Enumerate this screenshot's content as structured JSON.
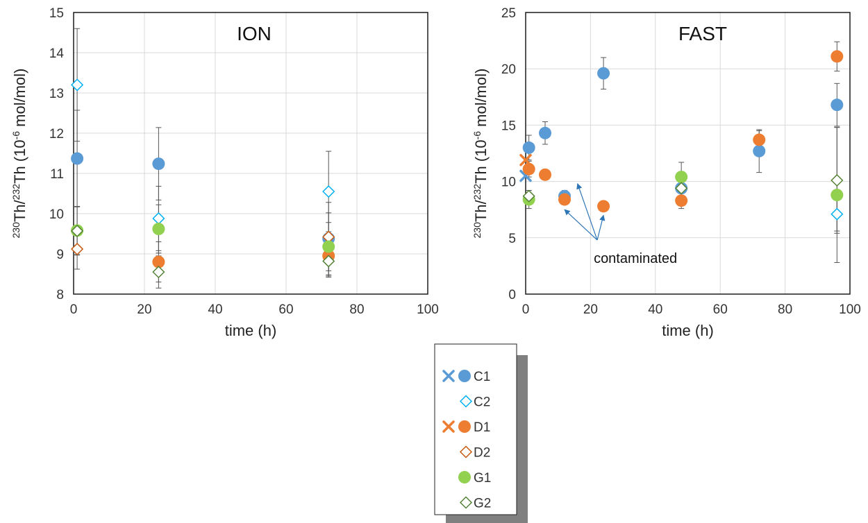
{
  "colors": {
    "C": "#5b9bd5",
    "D": "#ed7d31",
    "D2": "#c55a11",
    "G": "#92d050",
    "G2": "#548235",
    "grid": "#d9d9d9",
    "axis": "#555555",
    "error": "#555555"
  },
  "legend": {
    "placement": "bottom-center",
    "items": [
      {
        "name": "C1",
        "markers": [
          "x",
          "filled-circle"
        ],
        "color": "#5b9bd5"
      },
      {
        "name": "C2",
        "markers": [
          "open-diamond"
        ],
        "color": "#00b0f0"
      },
      {
        "name": "D1",
        "markers": [
          "x",
          "filled-circle"
        ],
        "color": "#ed7d31"
      },
      {
        "name": "D2",
        "markers": [
          "open-diamond"
        ],
        "color": "#c55a11"
      },
      {
        "name": "G1",
        "markers": [
          "filled-circle"
        ],
        "color": "#92d050"
      },
      {
        "name": "G2",
        "markers": [
          "open-diamond"
        ],
        "color": "#548235"
      }
    ]
  },
  "chart_data": [
    {
      "type": "scatter",
      "title": "ION",
      "xlabel": "time (h)",
      "ylabel_parts": {
        "sup1": "230",
        "t1": "Th/",
        "sup2": "232",
        "t2": "Th (10",
        "sup3": "-6",
        "t3": " mol/mol)"
      },
      "xlim": [
        0,
        100
      ],
      "ylim": [
        8,
        15
      ],
      "xticks": [
        "0",
        "20",
        "40",
        "60",
        "80",
        "100"
      ],
      "yticks": [
        "8",
        "9",
        "10",
        "11",
        "12",
        "13",
        "14",
        "15"
      ],
      "grid": true,
      "series": [
        {
          "name": "C1",
          "marker": "filled-circle",
          "color": "#5b9bd5",
          "points": [
            {
              "x": 1,
              "y": 11.37,
              "err": 1.2
            },
            {
              "x": 24,
              "y": 11.24,
              "err": 0.9
            },
            {
              "x": 72,
              "y": 9.38,
              "err": 0.9
            }
          ]
        },
        {
          "name": "C2",
          "marker": "open-diamond",
          "color": "#00b0f0",
          "points": [
            {
              "x": 1,
              "y": 13.2,
              "err": 1.4
            },
            {
              "x": 24,
              "y": 9.88,
              "err": 0.8
            },
            {
              "x": 72,
              "y": 10.55,
              "err": 1.0
            }
          ]
        },
        {
          "name": "D1",
          "marker": "filled-circle",
          "color": "#ed7d31",
          "points": [
            {
              "x": 24,
              "y": 8.8,
              "err": 0.5
            },
            {
              "x": 72,
              "y": 8.95,
              "err": 0.5
            }
          ]
        },
        {
          "name": "D2",
          "marker": "open-diamond",
          "color": "#c55a11",
          "points": [
            {
              "x": 1,
              "y": 9.12,
              "err": 0.5
            },
            {
              "x": 72,
              "y": 9.42,
              "err": 0.6
            }
          ]
        },
        {
          "name": "G1",
          "marker": "filled-circle",
          "color": "#92d050",
          "points": [
            {
              "x": 1,
              "y": 9.58,
              "err": 0.6
            },
            {
              "x": 24,
              "y": 9.62,
              "err": 0.6
            },
            {
              "x": 72,
              "y": 9.18,
              "err": 0.6
            }
          ]
        },
        {
          "name": "G2",
          "marker": "open-diamond",
          "color": "#548235",
          "points": [
            {
              "x": 1,
              "y": 9.57,
              "err": 0.6
            },
            {
              "x": 24,
              "y": 8.55,
              "err": 0.4
            },
            {
              "x": 72,
              "y": 8.82,
              "err": 0.4
            }
          ]
        }
      ]
    },
    {
      "type": "scatter",
      "title": "FAST",
      "xlabel": "time (h)",
      "ylabel_parts": {
        "sup1": "230",
        "t1": "Th/",
        "sup2": "232",
        "t2": "Th (10",
        "sup3": "-6",
        "t3": " mol/mol)"
      },
      "xlim": [
        0,
        100
      ],
      "ylim": [
        0,
        25
      ],
      "xticks": [
        "0",
        "20",
        "40",
        "60",
        "80",
        "100"
      ],
      "yticks": [
        "0",
        "5",
        "10",
        "15",
        "20",
        "25"
      ],
      "grid": true,
      "annotation": {
        "text": "contaminated",
        "x": 21,
        "y": 3.2,
        "arrows": [
          {
            "x": 12,
            "y": 7.5
          },
          {
            "x": 16,
            "y": 9.8
          },
          {
            "x": 24,
            "y": 7.0
          }
        ]
      },
      "series": [
        {
          "name": "C1 (x)",
          "marker": "x",
          "color": "#5b9bd5",
          "points": [
            {
              "x": 0,
              "y": 10.5
            }
          ]
        },
        {
          "name": "C1",
          "marker": "filled-circle",
          "color": "#5b9bd5",
          "points": [
            {
              "x": 1,
              "y": 13.0,
              "err": 1.1
            },
            {
              "x": 6,
              "y": 14.3,
              "err": 1.0
            },
            {
              "x": 12,
              "y": 8.7,
              "err": 0.5
            },
            {
              "x": 24,
              "y": 19.6,
              "err": 1.4
            },
            {
              "x": 48,
              "y": 9.4,
              "err": 1.3
            },
            {
              "x": 72,
              "y": 12.7,
              "err": 1.9
            },
            {
              "x": 96,
              "y": 16.8,
              "err": 1.9
            }
          ]
        },
        {
          "name": "C2",
          "marker": "open-diamond",
          "color": "#00b0f0",
          "points": [
            {
              "x": 96,
              "y": 7.1,
              "err": 1.5
            }
          ]
        },
        {
          "name": "D1 (x)",
          "marker": "x",
          "color": "#ed7d31",
          "points": [
            {
              "x": 0,
              "y": 11.9
            }
          ]
        },
        {
          "name": "D1",
          "marker": "filled-circle",
          "color": "#ed7d31",
          "points": [
            {
              "x": 1,
              "y": 11.1,
              "err": 0.7
            },
            {
              "x": 6,
              "y": 10.6,
              "err": 0.4
            },
            {
              "x": 12,
              "y": 8.4,
              "err": 0.4
            },
            {
              "x": 24,
              "y": 7.8,
              "err": 0.3
            },
            {
              "x": 48,
              "y": 8.3,
              "err": 0.7
            },
            {
              "x": 72,
              "y": 13.7,
              "err": 0.8
            },
            {
              "x": 96,
              "y": 21.1,
              "err": 1.3
            }
          ]
        },
        {
          "name": "G1",
          "marker": "filled-circle",
          "color": "#92d050",
          "points": [
            {
              "x": 1,
              "y": 8.4,
              "err": 0.8
            },
            {
              "x": 48,
              "y": 10.4,
              "err": 1.3
            },
            {
              "x": 96,
              "y": 8.8,
              "err": 6.0
            }
          ]
        },
        {
          "name": "G2",
          "marker": "open-diamond",
          "color": "#548235",
          "points": [
            {
              "x": 1,
              "y": 8.7,
              "err": 0.5
            },
            {
              "x": 48,
              "y": 9.4,
              "err": 1.0
            },
            {
              "x": 96,
              "y": 10.1,
              "err": 4.7
            }
          ]
        }
      ]
    }
  ]
}
